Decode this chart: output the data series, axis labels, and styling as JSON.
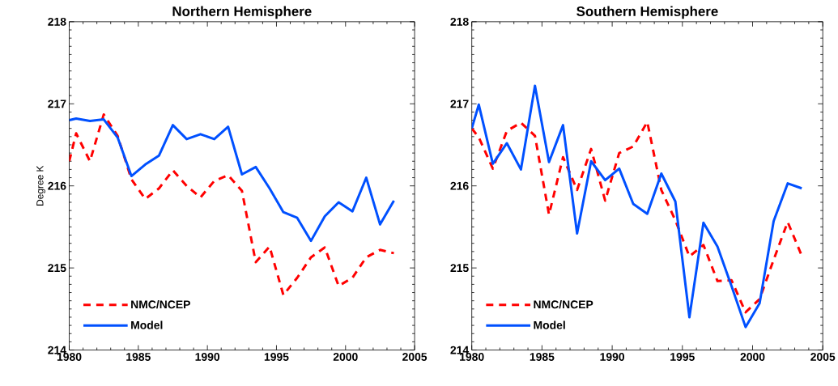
{
  "chart_data": [
    {
      "type": "line",
      "title": "Northern Hemisphere",
      "ylabel": "Degree K",
      "x": [
        1980,
        1980.5,
        1981.5,
        1982.5,
        1983.5,
        1984.5,
        1985.5,
        1986.5,
        1987.5,
        1988.5,
        1989.5,
        1990.5,
        1991.5,
        1992.5,
        1993.5,
        1994.5,
        1995.5,
        1996.5,
        1997.5,
        1998.5,
        1999.5,
        2000.5,
        2001.5,
        2002.5,
        2003.5
      ],
      "series": [
        {
          "name": "NMC/NCEP",
          "color": "#ff0000",
          "line_style": "dashed",
          "values": [
            216.3,
            216.64,
            216.3,
            216.87,
            216.61,
            216.08,
            215.84,
            215.97,
            216.19,
            216.0,
            215.86,
            216.06,
            216.13,
            215.94,
            215.07,
            215.26,
            214.67,
            214.88,
            215.13,
            215.25,
            214.78,
            214.88,
            215.13,
            215.22,
            215.18
          ]
        },
        {
          "name": "Model",
          "color": "#0050ff",
          "line_style": "solid",
          "values": [
            216.8,
            216.82,
            216.79,
            216.81,
            216.59,
            216.12,
            216.26,
            216.37,
            216.74,
            216.57,
            216.63,
            216.57,
            216.72,
            216.14,
            216.23,
            215.97,
            215.68,
            215.61,
            215.33,
            215.63,
            215.8,
            215.69,
            216.1,
            215.53,
            215.82
          ]
        }
      ],
      "xlim": [
        1980,
        2005
      ],
      "ylim": [
        214,
        218
      ],
      "xticks": [
        1980,
        1985,
        1990,
        1995,
        2000,
        2005
      ],
      "yticks": [
        214,
        215,
        216,
        217,
        218
      ],
      "legend": "bottom left",
      "grid": false,
      "marker": "none"
    },
    {
      "type": "line",
      "title": "Southern Hemisphere",
      "x": [
        1980,
        1980.5,
        1981.5,
        1982.5,
        1983.5,
        1984.5,
        1985.5,
        1986.5,
        1987.5,
        1988.5,
        1989.5,
        1990.5,
        1991.5,
        1992.5,
        1993.5,
        1994.5,
        1995.5,
        1996.5,
        1997.5,
        1998.5,
        1999.5,
        2000.5,
        2001.5,
        2002.5,
        2003.5
      ],
      "series": [
        {
          "name": "NMC/NCEP",
          "color": "#ff0000",
          "line_style": "dashed",
          "values": [
            216.7,
            216.59,
            216.21,
            216.67,
            216.77,
            216.61,
            215.65,
            216.35,
            215.95,
            216.45,
            215.82,
            216.4,
            216.48,
            216.78,
            215.95,
            215.58,
            215.14,
            215.28,
            214.84,
            214.85,
            214.46,
            214.62,
            215.1,
            215.56,
            215.15
          ]
        },
        {
          "name": "Model",
          "color": "#0050ff",
          "line_style": "solid",
          "values": [
            216.7,
            216.99,
            216.27,
            216.52,
            216.2,
            217.22,
            216.29,
            216.74,
            215.42,
            216.3,
            216.07,
            216.21,
            215.78,
            215.66,
            216.15,
            215.81,
            214.4,
            215.55,
            215.26,
            214.78,
            214.28,
            214.57,
            215.57,
            216.03,
            215.97
          ]
        }
      ],
      "xlim": [
        1980,
        2005
      ],
      "ylim": [
        214,
        218
      ],
      "xticks": [
        1980,
        1985,
        1990,
        1995,
        2000,
        2005
      ],
      "yticks": [
        214,
        215,
        216,
        217,
        218
      ],
      "legend": "bottom left",
      "grid": false,
      "marker": "none"
    }
  ]
}
